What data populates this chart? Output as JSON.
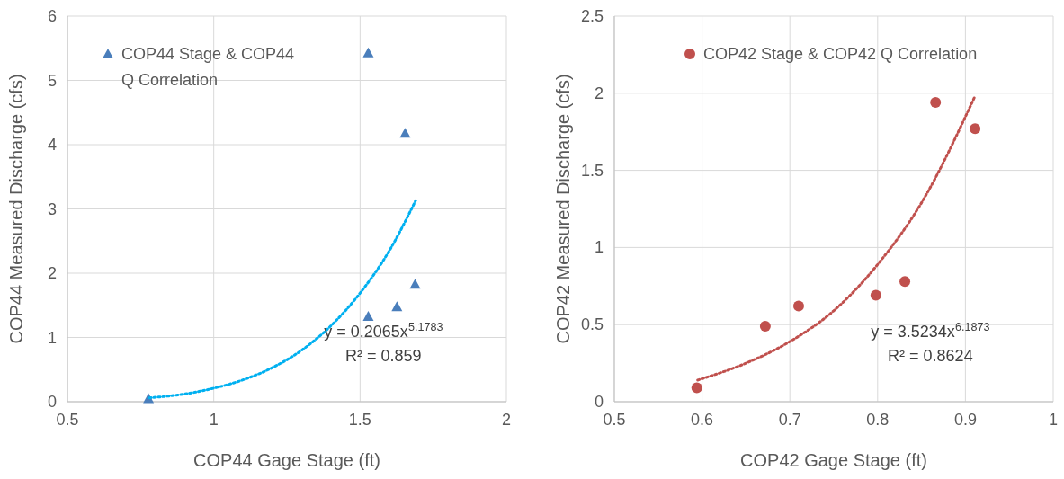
{
  "chart_data": [
    {
      "type": "scatter",
      "xlabel": "COP44 Gage Stage (ft)",
      "ylabel": "COP44 Measured Discharge (cfs)",
      "xlim": [
        0.5,
        2
      ],
      "xticks": [
        0.5,
        1,
        1.5,
        2
      ],
      "ylim": [
        0,
        6
      ],
      "yticks": [
        0,
        1,
        2,
        3,
        4,
        5,
        6
      ],
      "grid": true,
      "legend": "top left",
      "series": [
        {
          "name": "COP44 Stage & COP44 Q Correlation",
          "color": "#4a7ebb",
          "marker": "triangle",
          "x": [
            0.777,
            1.528,
            1.528,
            1.626,
            1.654,
            1.688
          ],
          "values": [
            0.05,
            5.43,
            1.33,
            1.48,
            4.18,
            1.83
          ]
        },
        {
          "type": "line",
          "color": "#00b0f0",
          "line_style": "dotted",
          "marker": "none",
          "x": [
            0.78,
            0.9,
            1.0,
            1.1,
            1.2,
            1.3,
            1.4,
            1.5,
            1.6,
            1.69
          ],
          "values": [
            0.06,
            0.12,
            0.21,
            0.34,
            0.53,
            0.8,
            1.18,
            1.69,
            2.35,
            3.13
          ]
        }
      ],
      "annotations": [
        "y = 0.2065x$^{5.1783}$",
        "R² = 0.859"
      ]
    },
    {
      "type": "scatter",
      "xlabel": "COP42 Gage Stage (ft)",
      "ylabel": "COP42 Measured Discharge (cfs)",
      "xlim": [
        0.5,
        1
      ],
      "xticks": [
        0.5,
        0.6,
        0.7,
        0.8,
        0.9,
        1
      ],
      "ylim": [
        0,
        2.5
      ],
      "yticks": [
        0,
        0.5,
        1,
        1.5,
        2,
        2.5
      ],
      "grid": true,
      "legend": "top",
      "series": [
        {
          "name": "COP42 Stage & COP42 Q Correlation",
          "color": "#c0504d",
          "marker": "circle",
          "x": [
            0.594,
            0.672,
            0.71,
            0.798,
            0.831,
            0.866,
            0.911
          ],
          "values": [
            0.09,
            0.49,
            0.62,
            0.69,
            0.78,
            1.94,
            1.77
          ]
        },
        {
          "type": "line",
          "color": "#c0504d",
          "line_style": "dotted",
          "marker": "none",
          "x": [
            0.595,
            0.65,
            0.7,
            0.75,
            0.8,
            0.85,
            0.91
          ],
          "values": [
            0.14,
            0.25,
            0.39,
            0.59,
            0.89,
            1.29,
            1.97
          ]
        }
      ],
      "annotations": [
        "y = 3.5234x$^{6.1873}$",
        "R² = 0.8624"
      ]
    }
  ]
}
